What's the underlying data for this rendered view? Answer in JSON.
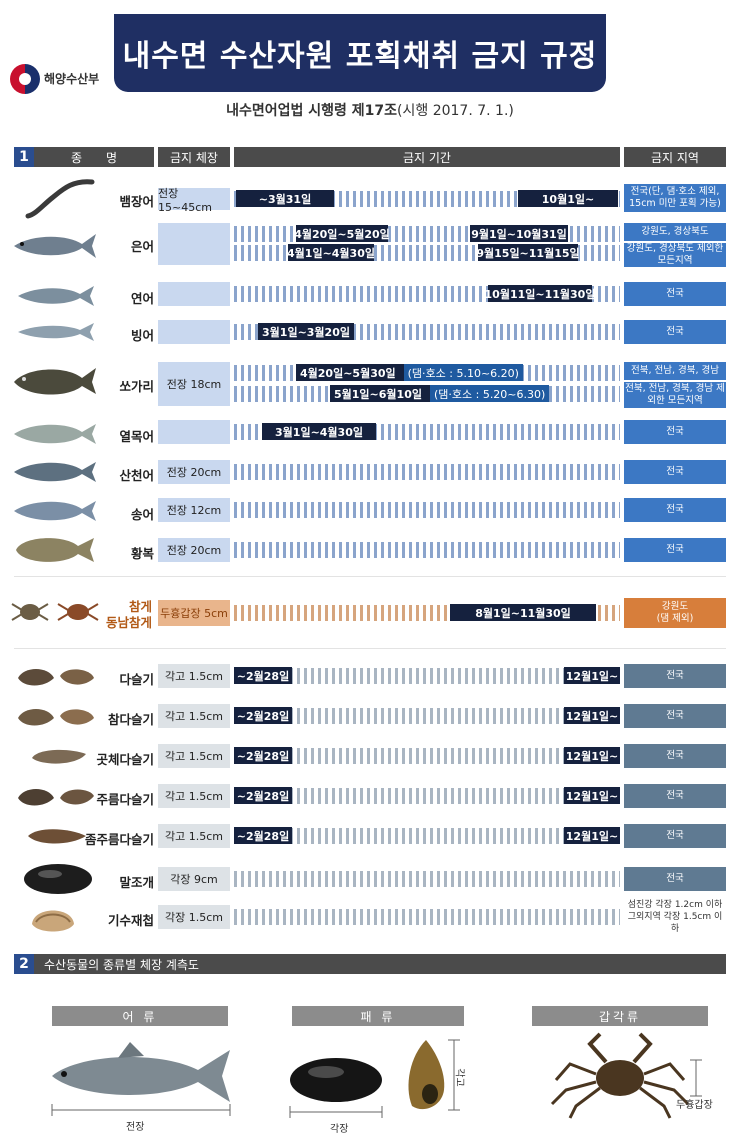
{
  "header": {
    "ministry": "해양수산부",
    "title": "내수면 수산자원 포획채취 금지 규정",
    "subtitle_bold": "내수면어업법 시행령 제17조",
    "subtitle_rest": "(시행 2017. 7. 1.)"
  },
  "section1": {
    "number": "1",
    "columns": [
      "종　　명",
      "금지 체장",
      "금지 기간",
      "금지 지역"
    ]
  },
  "rows": [
    {
      "name": "뱀장어",
      "size": "전장 15~45cm",
      "bars": [
        "~3월31일",
        "10월1일~"
      ],
      "area": "전국(단, 댐·호소 제외, 15cm 미만 포획 가능)"
    },
    {
      "name": "은어",
      "size": "",
      "bars": [
        "4월20일~5월20일",
        "9월1일~10월31일",
        "4월1일~4월30일",
        "9월15일~11월15일"
      ],
      "areas": [
        "강원도, 경상북도",
        "강원도, 경상북도 제외한 모든지역"
      ]
    },
    {
      "name": "연어",
      "size": "",
      "bars": [
        "10월11일~11월30일"
      ],
      "area": "전국"
    },
    {
      "name": "빙어",
      "size": "",
      "bars": [
        "3월1일~3월20일"
      ],
      "area": "전국"
    },
    {
      "name": "쏘가리",
      "size": "전장 18cm",
      "bars": [
        "4월20일~5월30일",
        "5월1일~6월10일"
      ],
      "notes": [
        "(댐·호소 : 5.10~6.20)",
        "(댐·호소 : 5.20~6.30)"
      ],
      "areas": [
        "전북, 전남, 경북, 경남",
        "전북, 전남, 경북, 경남 제외한 모든지역"
      ]
    },
    {
      "name": "열목어",
      "size": "",
      "bars": [
        "3월1일~4월30일"
      ],
      "area": "전국"
    },
    {
      "name": "산천어",
      "size": "전장 20cm",
      "bars": [],
      "area": "전국"
    },
    {
      "name": "송어",
      "size": "전장 12cm",
      "bars": [],
      "area": "전국"
    },
    {
      "name": "황복",
      "size": "전장 20cm",
      "bars": [],
      "area": "전국"
    },
    {
      "name": "참게",
      "name2": "동남참게",
      "size": "두흉갑장 5cm",
      "bars": [
        "8월1일~11월30일"
      ],
      "area": "강원도",
      "area2": "(댐 제외)"
    },
    {
      "name": "다슬기",
      "size": "각고 1.5cm",
      "bars": [
        "~2월28일",
        "12월1일~"
      ],
      "area": "전국"
    },
    {
      "name": "참다슬기",
      "size": "각고 1.5cm",
      "bars": [
        "~2월28일",
        "12월1일~"
      ],
      "area": "전국"
    },
    {
      "name": "곳체다슬기",
      "size": "각고 1.5cm",
      "bars": [
        "~2월28일",
        "12월1일~"
      ],
      "area": "전국"
    },
    {
      "name": "주름다슬기",
      "size": "각고 1.5cm",
      "bars": [
        "~2월28일",
        "12월1일~"
      ],
      "area": "전국"
    },
    {
      "name": "좀주름다슬기",
      "size": "각고 1.5cm",
      "bars": [
        "~2월28일",
        "12월1일~"
      ],
      "area": "전국"
    },
    {
      "name": "말조개",
      "size": "각장 9cm",
      "bars": [],
      "area": "전국"
    },
    {
      "name": "기수재첩",
      "size": "각장 1.5cm",
      "bars": [],
      "area": "섬진강 각장 1.2cm 이하",
      "area2": "그외지역 각장 1.5cm 이하"
    }
  ],
  "section2": {
    "number": "2",
    "title": "수산동물의 종류별 체장 계측도",
    "categories": [
      "어 류",
      "패 류",
      "갑각류"
    ],
    "labels": {
      "fish": "전장",
      "shell_len": "각장",
      "shell_height": "각고",
      "crab": "두흉갑장"
    }
  },
  "colors": {
    "navy": "#1f2f63",
    "fish_area": "#3c78c4",
    "crab_area": "#d77e3b",
    "shell_area": "#5f7a92"
  }
}
